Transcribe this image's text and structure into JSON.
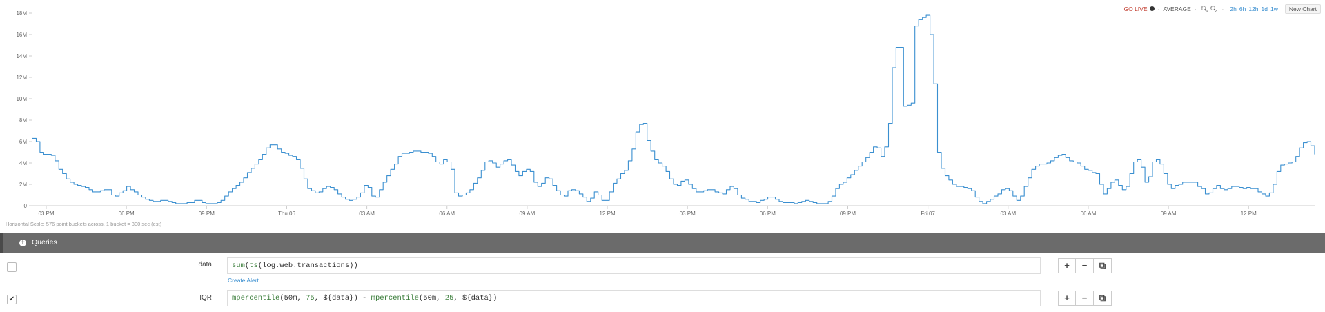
{
  "toolbar": {
    "golive": "GO LIVE",
    "aggregation": "AVERAGE",
    "ranges": [
      "2h",
      "6h",
      "12h",
      "1d",
      "1w"
    ],
    "new_chart": "New Chart"
  },
  "horizontal_scale": "Horizontal Scale: 576 point buckets across, 1 bucket = 300 sec (est)",
  "queries_label": "Queries",
  "queries": [
    {
      "name": "data",
      "checked": false,
      "expression": "sum(ts(log.web.transactions))",
      "create_alert": "Create Alert"
    },
    {
      "name": "IQR",
      "checked": true,
      "expression": "mpercentile(50m, 75, ${data}) - mpercentile(50m, 25, ${data})"
    }
  ],
  "colors": {
    "line": "#3a8fd0",
    "golive": "#c0392b",
    "queries_bar": "#6b6b6b"
  },
  "chart_data": {
    "type": "line",
    "x_tick_labels": [
      "03 PM",
      "06 PM",
      "09 PM",
      "Thu 06",
      "03 AM",
      "06 AM",
      "09 AM",
      "12 PM",
      "03 PM",
      "06 PM",
      "09 PM",
      "Fri 07",
      "03 AM",
      "06 AM",
      "09 AM",
      "12 PM"
    ],
    "y_tick_labels": [
      "0",
      "2M",
      "4M",
      "6M",
      "8M",
      "10M",
      "12M",
      "14M",
      "16M",
      "18M"
    ],
    "ylim": [
      0,
      18000000
    ],
    "grid": false,
    "series": [
      {
        "values_millions": [
          6.3,
          6.0,
          5.0,
          4.8,
          4.8,
          4.7,
          4.2,
          3.4,
          3.0,
          2.5,
          2.2,
          2.0,
          1.9,
          1.8,
          1.7,
          1.5,
          1.3,
          1.3,
          1.4,
          1.5,
          1.5,
          1.0,
          0.9,
          1.2,
          1.4,
          1.8,
          1.5,
          1.3,
          1.0,
          0.8,
          0.6,
          0.5,
          0.4,
          0.4,
          0.5,
          0.5,
          0.4,
          0.3,
          0.2,
          0.2,
          0.2,
          0.3,
          0.3,
          0.5,
          0.5,
          0.3,
          0.2,
          0.2,
          0.2,
          0.3,
          0.5,
          0.9,
          1.3,
          1.6,
          1.9,
          2.2,
          2.6,
          3.1,
          3.5,
          3.9,
          4.3,
          4.8,
          5.4,
          5.7,
          5.7,
          5.3,
          5.0,
          4.9,
          4.7,
          4.6,
          4.3,
          3.5,
          2.5,
          1.6,
          1.4,
          1.2,
          1.3,
          1.6,
          1.8,
          1.7,
          1.5,
          1.1,
          0.8,
          0.6,
          0.5,
          0.6,
          0.8,
          1.2,
          1.9,
          1.7,
          0.9,
          0.8,
          1.5,
          2.2,
          2.8,
          3.4,
          3.9,
          4.6,
          4.9,
          4.9,
          5.0,
          5.1,
          5.1,
          5.0,
          5.0,
          4.9,
          4.6,
          4.1,
          3.9,
          4.3,
          4.1,
          3.4,
          1.2,
          0.9,
          1.0,
          1.2,
          1.5,
          2.1,
          2.6,
          3.3,
          4.1,
          4.2,
          4.0,
          3.6,
          3.9,
          4.2,
          4.3,
          3.8,
          3.2,
          2.8,
          3.2,
          3.4,
          3.2,
          2.2,
          1.8,
          2.1,
          2.6,
          2.5,
          1.9,
          1.4,
          1.0,
          0.9,
          1.4,
          1.5,
          1.4,
          1.1,
          0.8,
          0.4,
          0.7,
          1.3,
          1.0,
          0.5,
          0.5,
          1.3,
          2.1,
          2.5,
          3.0,
          3.3,
          4.2,
          5.3,
          6.9,
          7.6,
          7.7,
          6.1,
          5.1,
          4.3,
          4.0,
          3.7,
          3.2,
          2.5,
          2.0,
          1.9,
          2.3,
          2.4,
          2.0,
          1.6,
          1.3,
          1.3,
          1.4,
          1.5,
          1.5,
          1.3,
          1.2,
          1.1,
          1.5,
          1.8,
          1.6,
          1.0,
          0.7,
          0.6,
          0.4,
          0.4,
          0.3,
          0.5,
          0.6,
          0.8,
          0.8,
          0.6,
          0.4,
          0.3,
          0.3,
          0.3,
          0.2,
          0.3,
          0.4,
          0.5,
          0.4,
          0.3,
          0.2,
          0.2,
          0.2,
          0.4,
          0.9,
          1.6,
          2.0,
          2.2,
          2.6,
          2.9,
          3.3,
          3.7,
          4.1,
          4.5,
          5.0,
          5.5,
          5.4,
          4.6,
          5.5,
          7.7,
          12.9,
          14.8,
          14.8,
          9.3,
          9.4,
          9.6,
          16.8,
          17.4,
          17.6,
          17.8,
          16.0,
          11.4,
          5.0,
          3.5,
          2.8,
          2.4,
          2.0,
          1.8,
          1.8,
          1.7,
          1.6,
          1.4,
          0.8,
          0.4,
          0.2,
          0.4,
          0.6,
          0.9,
          1.1,
          1.5,
          1.6,
          1.4,
          0.9,
          0.5,
          0.9,
          1.8,
          2.6,
          3.4,
          3.7,
          3.9,
          3.9,
          4.0,
          4.2,
          4.5,
          4.7,
          4.8,
          4.5,
          4.2,
          4.1,
          4.0,
          3.7,
          3.4,
          3.3,
          3.1,
          3.0,
          2.0,
          1.1,
          1.6,
          2.2,
          2.4,
          1.9,
          1.5,
          1.8,
          3.0,
          4.1,
          4.3,
          3.6,
          2.2,
          2.7,
          4.1,
          4.3,
          3.9,
          3.0,
          2.0,
          1.6,
          1.9,
          2.0,
          2.2,
          2.2,
          2.2,
          2.2,
          1.8,
          1.6,
          1.1,
          1.2,
          1.6,
          1.9,
          1.6,
          1.5,
          1.6,
          1.8,
          1.8,
          1.7,
          1.6,
          1.7,
          1.6,
          1.6,
          1.3,
          1.1,
          0.9,
          1.2,
          2.0,
          3.2,
          3.8,
          3.9,
          4.0,
          4.1,
          4.6,
          5.4,
          5.9,
          6.0,
          5.6,
          4.8
        ]
      }
    ]
  }
}
